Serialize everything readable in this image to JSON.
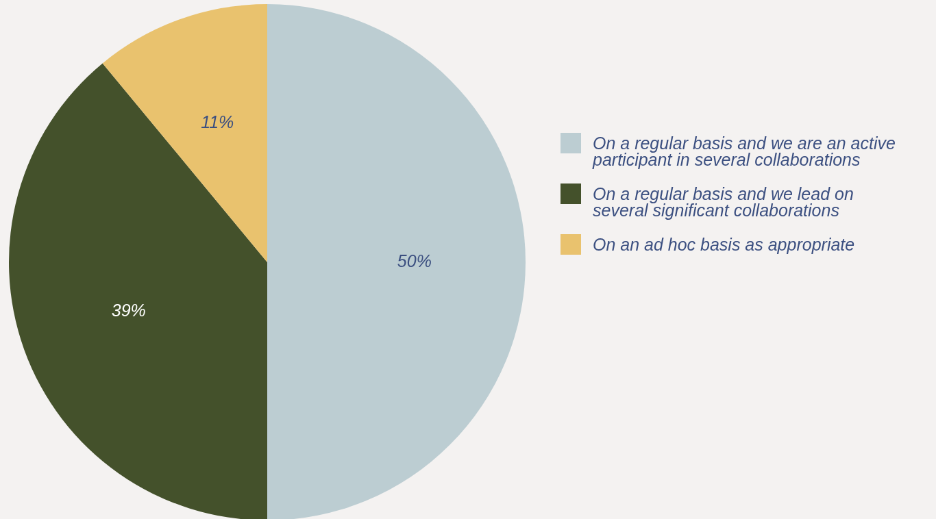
{
  "chart_data": {
    "type": "pie",
    "categories": [
      "On a regular basis and we are an active participant in several collaborations",
      "On a regular basis and we lead on several significant collaborations",
      "On an ad hoc basis as appropriate"
    ],
    "values": [
      50,
      39,
      11
    ],
    "colors": [
      "#bccdd2",
      "#44512b",
      "#e9c26e"
    ],
    "value_labels": [
      "50%",
      "39%",
      "11%"
    ],
    "legend": "right"
  }
}
